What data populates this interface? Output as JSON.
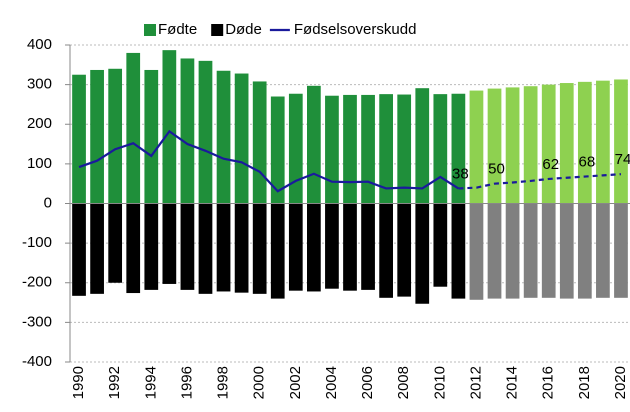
{
  "chart_data": {
    "type": "bar_line",
    "categories": [
      "1990",
      null,
      "1992",
      null,
      "1994",
      null,
      "1996",
      null,
      "1998",
      null,
      "2000",
      null,
      "2002",
      null,
      "2004",
      null,
      "2006",
      null,
      "2008",
      null,
      "2010",
      null,
      "2012",
      null,
      "2014",
      null,
      "2016",
      null,
      "2018",
      null,
      "2020"
    ],
    "series": [
      {
        "name": "Fødte",
        "kind": "bar",
        "color": "#1f8f3a",
        "projection_color": "#8ed150",
        "values": [
          325,
          337,
          340,
          380,
          337,
          387,
          366,
          360,
          335,
          328,
          308,
          270,
          277,
          297,
          272,
          274,
          274,
          276,
          275,
          291,
          276,
          277,
          285,
          290,
          293,
          296,
          300,
          304,
          307,
          310,
          313
        ]
      },
      {
        "name": "Døde",
        "kind": "bar",
        "color": "#000000",
        "projection_color": "#808080",
        "values": [
          -233,
          -228,
          -200,
          -226,
          -218,
          -203,
          -218,
          -228,
          -222,
          -225,
          -228,
          -240,
          -220,
          -222,
          -215,
          -220,
          -218,
          -238,
          -235,
          -253,
          -210,
          -240,
          -243,
          -240,
          -240,
          -238,
          -238,
          -240,
          -240,
          -238,
          -238
        ]
      },
      {
        "name": "Fødselsoverskudd",
        "kind": "line",
        "color": "#1a1a9c",
        "values": [
          92,
          108,
          137,
          152,
          120,
          182,
          150,
          133,
          113,
          104,
          80,
          31,
          57,
          75,
          55,
          54,
          55,
          38,
          40,
          38,
          67,
          38,
          40,
          50,
          53,
          57,
          62,
          65,
          68,
          71,
          74
        ],
        "value_labels": [
          null,
          null,
          null,
          null,
          null,
          null,
          null,
          null,
          null,
          null,
          null,
          null,
          null,
          null,
          null,
          null,
          null,
          null,
          null,
          null,
          null,
          "38",
          null,
          "50",
          null,
          null,
          "62",
          null,
          "68",
          null,
          "74"
        ]
      }
    ],
    "projection_start_category": "2012",
    "ylim": [
      -400,
      400
    ],
    "yticks": [
      -400,
      -300,
      -200,
      -100,
      0,
      100,
      200,
      300,
      400
    ],
    "grid": true,
    "legend": "top"
  }
}
